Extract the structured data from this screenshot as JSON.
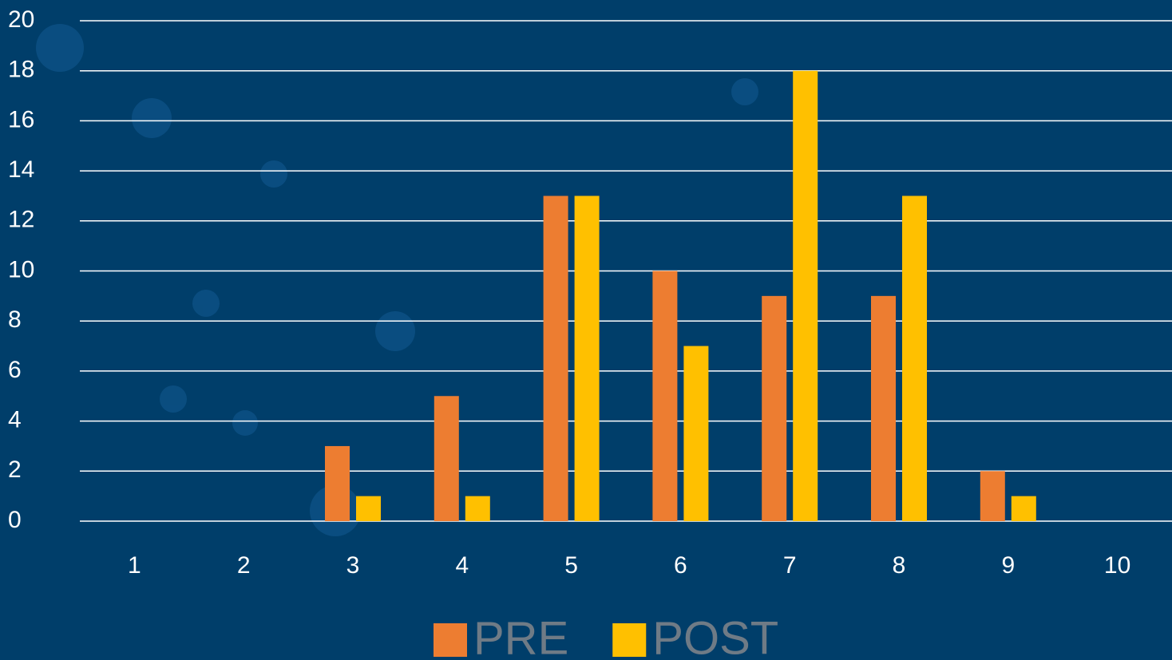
{
  "chart_data": {
    "type": "bar",
    "categories": [
      "1",
      "2",
      "3",
      "4",
      "5",
      "6",
      "7",
      "8",
      "9",
      "10"
    ],
    "series": [
      {
        "name": "PRE",
        "color": "#ed7d31",
        "values": [
          0,
          0,
          3,
          5,
          13,
          10,
          9,
          9,
          2,
          0
        ]
      },
      {
        "name": "POST",
        "color": "#ffc000",
        "values": [
          0,
          0,
          1,
          1,
          13,
          7,
          18,
          13,
          1,
          0
        ]
      }
    ],
    "ylim": [
      0,
      20
    ],
    "yticks": [
      0,
      2,
      4,
      6,
      8,
      10,
      12,
      14,
      16,
      18,
      20
    ],
    "grid": true,
    "legend": "bottom"
  }
}
